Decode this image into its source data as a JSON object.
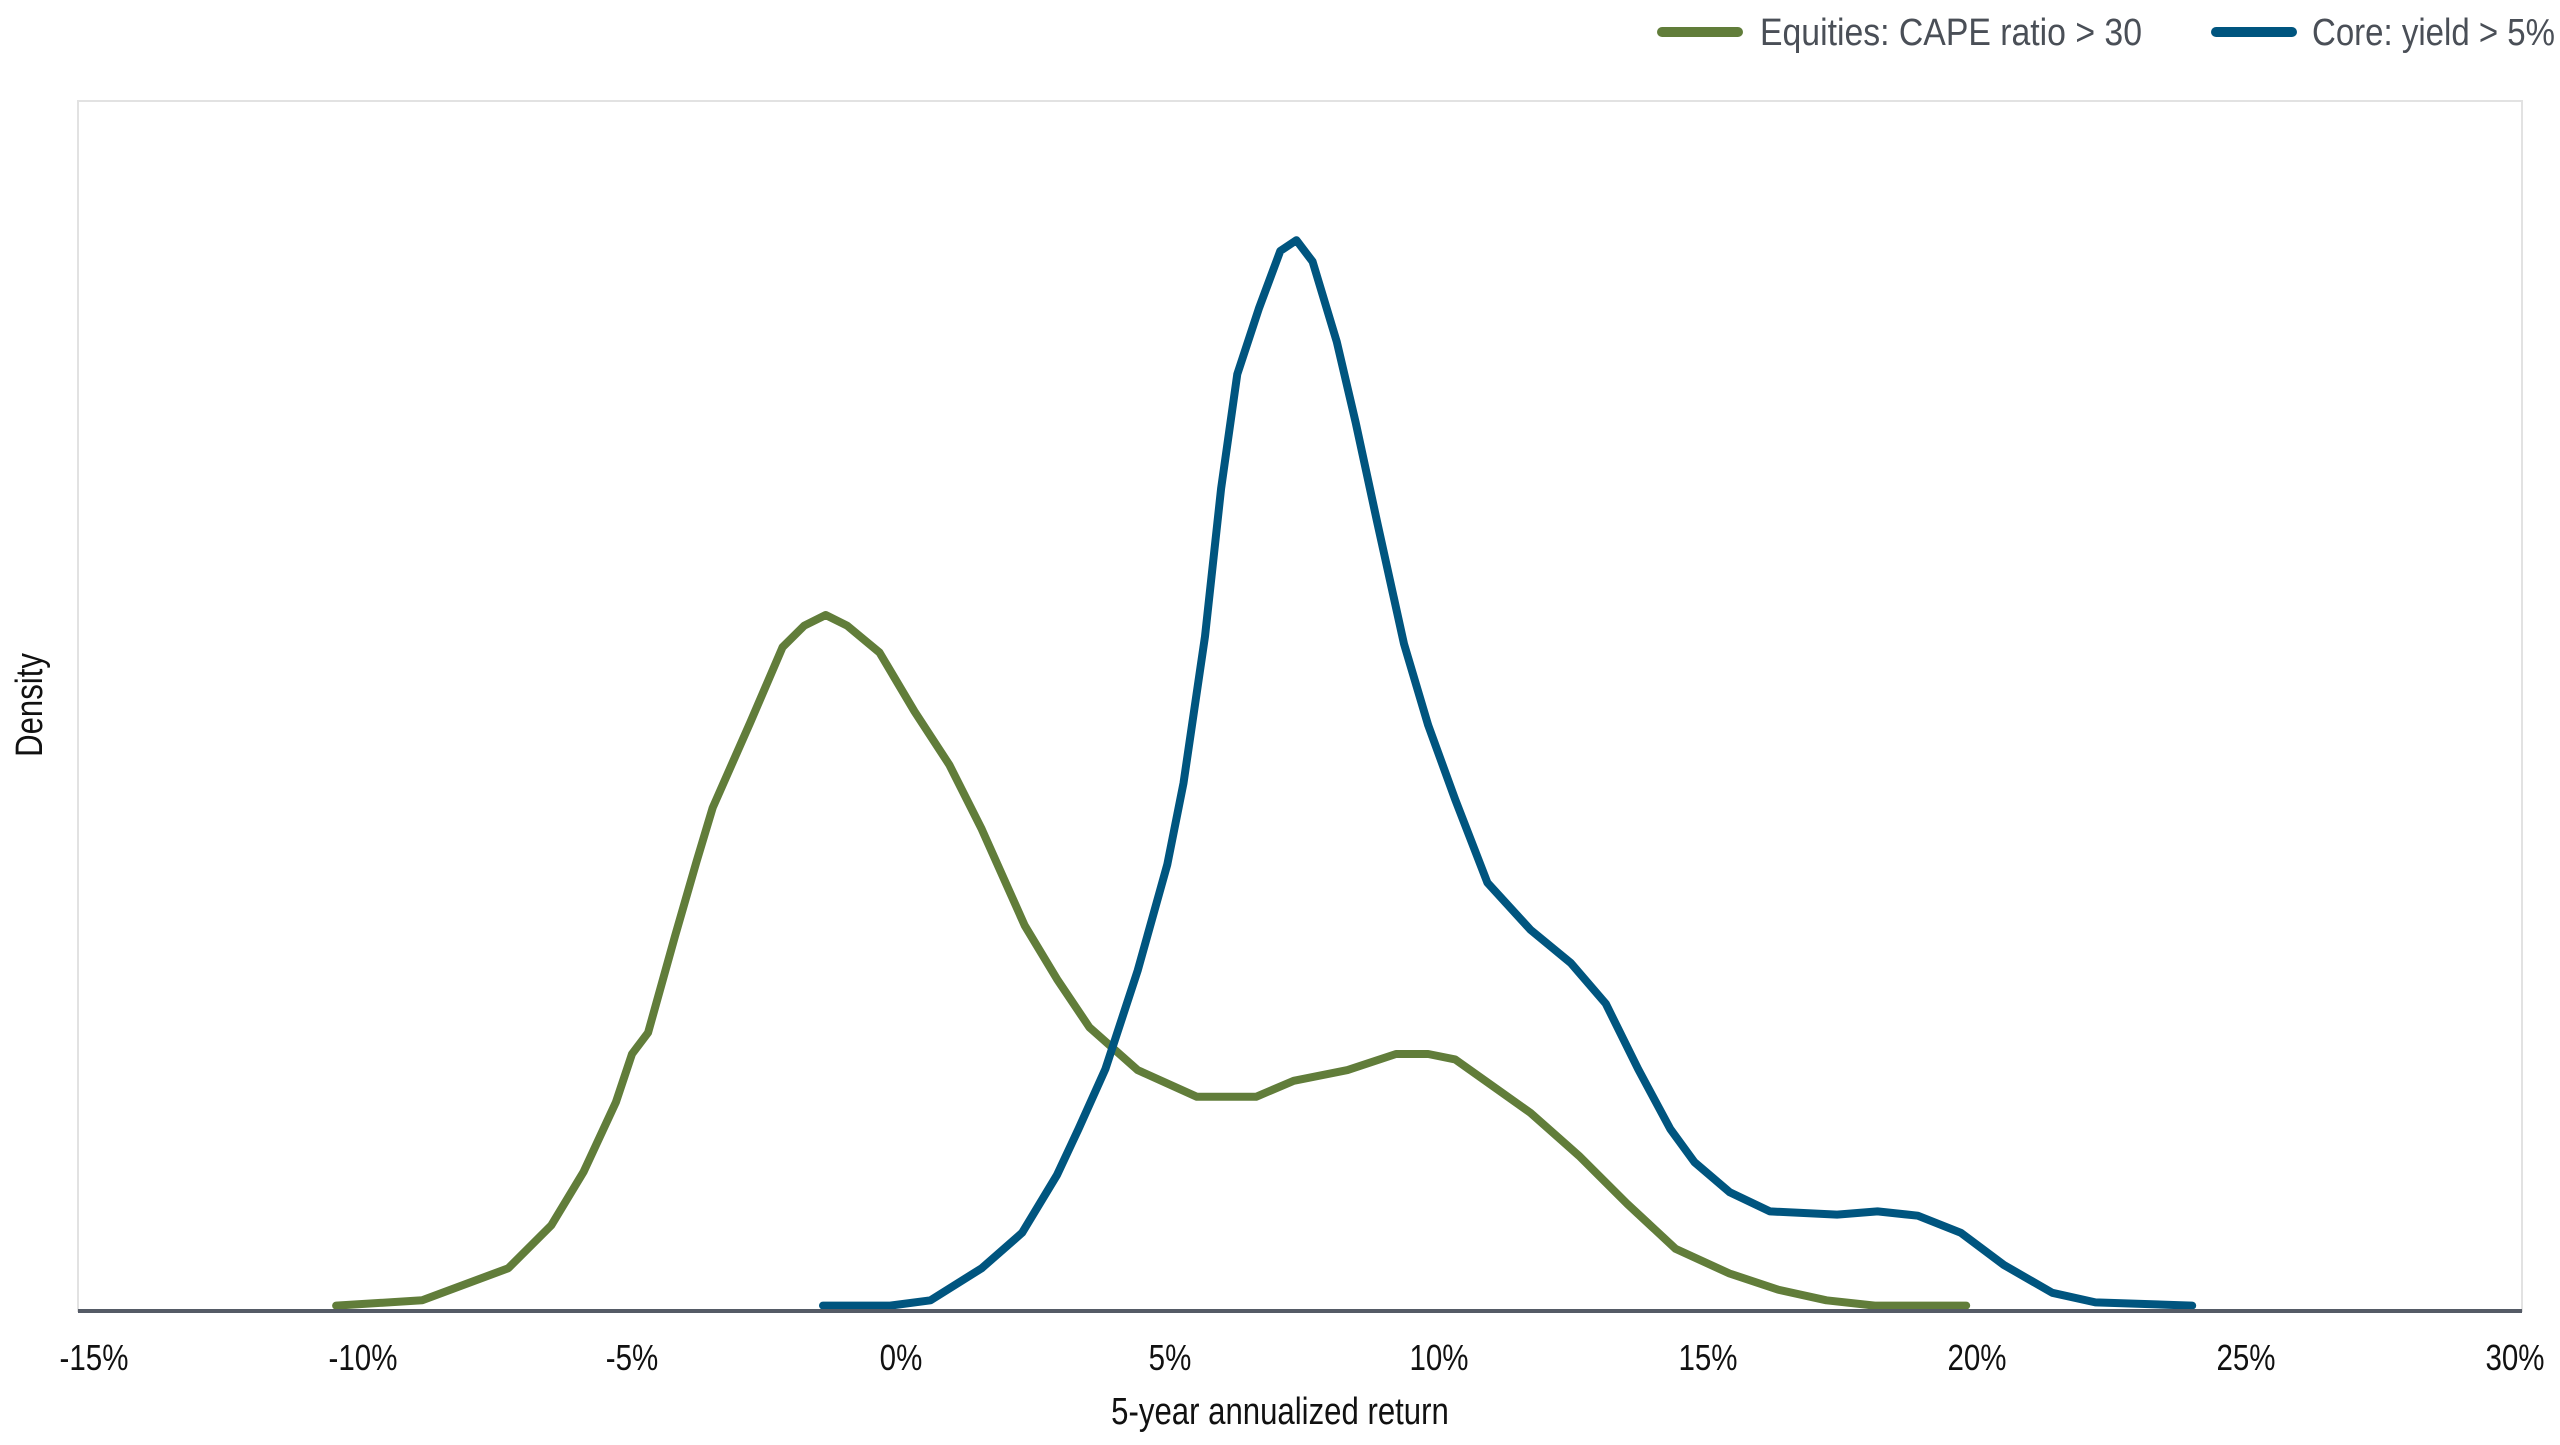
{
  "chart_data": {
    "type": "line",
    "title": "",
    "xlabel": "5-year annualized return",
    "ylabel": "Density",
    "xlim": [
      -15,
      30
    ],
    "ylim": [
      0,
      1.13
    ],
    "x_ticks": [
      "-15%",
      "-10%",
      "-5%",
      "0%",
      "5%",
      "10%",
      "15%",
      "20%",
      "25%",
      "30%"
    ],
    "x_tick_values": [
      -15,
      -10,
      -5,
      0,
      5,
      10,
      15,
      20,
      25,
      30
    ],
    "y_ticks_shown": false,
    "grid": false,
    "legend_placement": "top-right",
    "series": [
      {
        "name": "Equities: CAPE ratio > 30",
        "color": "#617d3a",
        "points": [
          [
            -10.5,
            0.005
          ],
          [
            -8.9,
            0.01
          ],
          [
            -7.3,
            0.04
          ],
          [
            -6.5,
            0.08
          ],
          [
            -5.9,
            0.13
          ],
          [
            -5.3,
            0.195
          ],
          [
            -5.0,
            0.24
          ],
          [
            -4.7,
            0.26
          ],
          [
            -4.2,
            0.35
          ],
          [
            -3.8,
            0.42
          ],
          [
            -3.5,
            0.47
          ],
          [
            -2.8,
            0.55
          ],
          [
            -2.2,
            0.62
          ],
          [
            -1.8,
            0.64
          ],
          [
            -1.4,
            0.65
          ],
          [
            -1.0,
            0.64
          ],
          [
            -0.4,
            0.615
          ],
          [
            0.25,
            0.56
          ],
          [
            0.9,
            0.51
          ],
          [
            1.5,
            0.45
          ],
          [
            2.3,
            0.36
          ],
          [
            2.9,
            0.31
          ],
          [
            3.5,
            0.265
          ],
          [
            4.4,
            0.225
          ],
          [
            5.5,
            0.2
          ],
          [
            6.6,
            0.2
          ],
          [
            7.3,
            0.215
          ],
          [
            8.3,
            0.225
          ],
          [
            9.2,
            0.24
          ],
          [
            9.8,
            0.24
          ],
          [
            10.3,
            0.235
          ],
          [
            11.0,
            0.21
          ],
          [
            11.7,
            0.185
          ],
          [
            12.6,
            0.145
          ],
          [
            13.5,
            0.1
          ],
          [
            14.4,
            0.058
          ],
          [
            15.4,
            0.035
          ],
          [
            16.3,
            0.02
          ],
          [
            17.2,
            0.01
          ],
          [
            18.1,
            0.005
          ],
          [
            19.8,
            0.005
          ]
        ]
      },
      {
        "name": "Core: yield > 5%",
        "color": "#00557f",
        "points": [
          [
            -1.45,
            0.005
          ],
          [
            -0.2,
            0.005
          ],
          [
            0.55,
            0.01
          ],
          [
            1.5,
            0.04
          ],
          [
            2.25,
            0.073
          ],
          [
            2.9,
            0.127
          ],
          [
            3.3,
            0.17
          ],
          [
            3.8,
            0.226
          ],
          [
            4.4,
            0.318
          ],
          [
            4.95,
            0.417
          ],
          [
            5.25,
            0.493
          ],
          [
            5.65,
            0.63
          ],
          [
            5.95,
            0.768
          ],
          [
            6.25,
            0.875
          ],
          [
            6.65,
            0.936
          ],
          [
            7.05,
            0.99
          ],
          [
            7.35,
            1.0
          ],
          [
            7.65,
            0.98
          ],
          [
            8.1,
            0.905
          ],
          [
            8.45,
            0.83
          ],
          [
            8.85,
            0.737
          ],
          [
            9.35,
            0.623
          ],
          [
            9.8,
            0.547
          ],
          [
            10.3,
            0.478
          ],
          [
            10.9,
            0.4
          ],
          [
            11.7,
            0.356
          ],
          [
            12.45,
            0.325
          ],
          [
            13.1,
            0.287
          ],
          [
            13.7,
            0.226
          ],
          [
            14.3,
            0.17
          ],
          [
            14.75,
            0.139
          ],
          [
            15.4,
            0.111
          ],
          [
            16.15,
            0.093
          ],
          [
            17.4,
            0.09
          ],
          [
            18.15,
            0.093
          ],
          [
            18.9,
            0.089
          ],
          [
            19.7,
            0.073
          ],
          [
            20.5,
            0.043
          ],
          [
            21.4,
            0.017
          ],
          [
            22.2,
            0.008
          ],
          [
            24.0,
            0.005
          ]
        ]
      }
    ],
    "axis_color": "#555b66",
    "frame_color": "#e2e2e2"
  }
}
